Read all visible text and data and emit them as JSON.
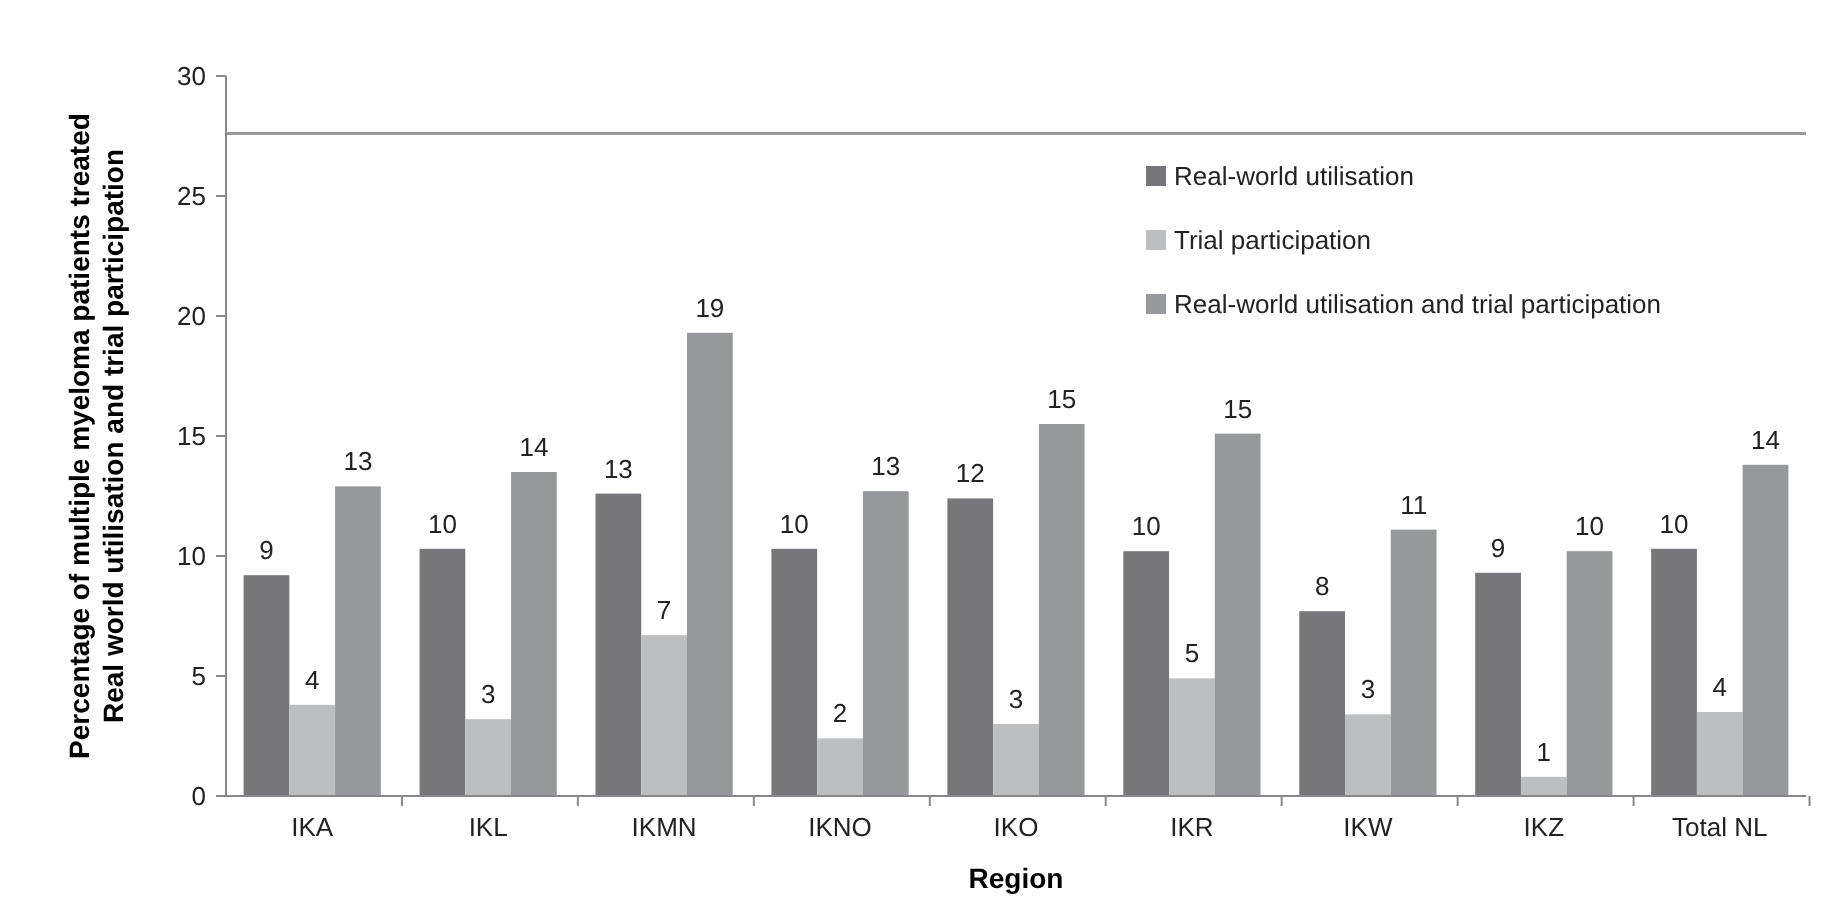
{
  "chart_data": {
    "type": "bar",
    "xlabel": "Region",
    "ylabel": "Percentage of multiple myeloma patients treated\nReal world utilisation  and trial participation",
    "categories": [
      "IKA",
      "IKL",
      "IKMN",
      "IKNO",
      "IKO",
      "IKR",
      "IKW",
      "IKZ",
      "Total NL"
    ],
    "series": [
      {
        "name": "Real-world utilisation",
        "color": "#77777b",
        "values": [
          9.2,
          10.3,
          12.6,
          10.3,
          12.4,
          10.2,
          7.7,
          9.3,
          10.3
        ],
        "value_labels": [
          "9",
          "10",
          "13",
          "10",
          "12",
          "10",
          "8",
          "9",
          "10"
        ]
      },
      {
        "name": "Trial participation",
        "color": "#bdbec0",
        "values": [
          3.8,
          3.2,
          6.7,
          2.4,
          3.0,
          4.9,
          3.4,
          0.8,
          3.5
        ],
        "value_labels": [
          "4",
          "3",
          "7",
          "2",
          "3",
          "5",
          "3",
          "1",
          "4"
        ]
      },
      {
        "name": "Real-world utilisation and trial participation",
        "color": "#97989b",
        "values": [
          12.9,
          13.5,
          19.3,
          12.7,
          15.5,
          15.1,
          11.1,
          10.2,
          13.8
        ],
        "value_labels": [
          "13",
          "14",
          "19",
          "13",
          "15",
          "15",
          "11",
          "10",
          "14"
        ]
      }
    ],
    "ylim": [
      0,
      30
    ],
    "yticks": [
      0,
      5,
      10,
      15,
      20,
      25,
      30
    ],
    "ref_lines": [
      {
        "axis": "y",
        "value": 27.6,
        "color": "#999999"
      }
    ],
    "legend": "top right"
  }
}
